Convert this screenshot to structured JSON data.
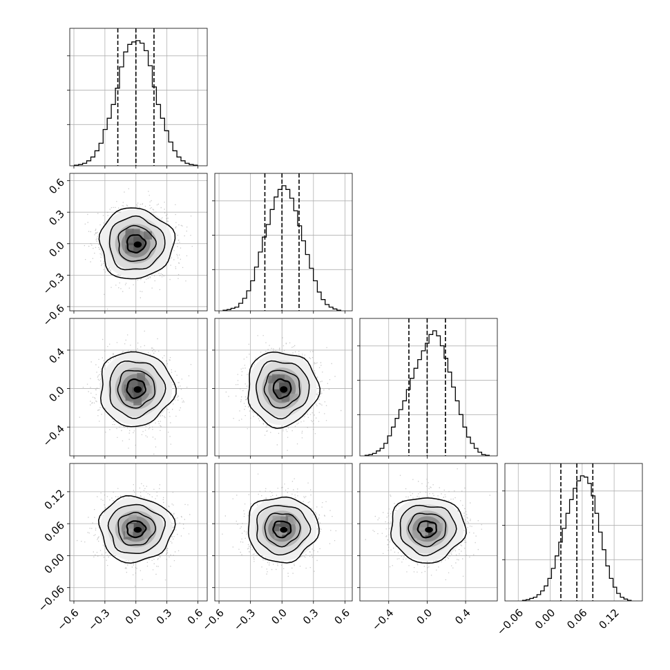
{
  "chart_data": {
    "type": "corner",
    "colors": {
      "ink": "#000000",
      "grid": "#b0b0b0",
      "scatter": "#9a9a9a",
      "background": "#ffffff"
    },
    "grid": true,
    "parameters": [
      {
        "range": [
          -0.64,
          0.69
        ],
        "ticks": [
          -0.6,
          -0.3,
          0.0,
          0.3,
          0.6
        ],
        "tick_labels": [
          "−0.6",
          "−0.3",
          "0.0",
          "0.3",
          "0.6"
        ],
        "mean": 0.0,
        "sd": 0.175
      },
      {
        "range": [
          -0.64,
          0.67
        ],
        "ticks": [
          -0.6,
          -0.3,
          0.0,
          0.3,
          0.6
        ],
        "tick_labels": [
          "−0.6",
          "−0.3",
          "0.0",
          "0.3",
          "0.6"
        ],
        "mean": 0.0,
        "sd": 0.165
      },
      {
        "range": [
          -0.7,
          0.73
        ],
        "ticks": [
          -0.4,
          0.0,
          0.4
        ],
        "tick_labels": [
          "−0.4",
          "0.0",
          "0.4"
        ],
        "mean": 0.0,
        "sd": 0.19
      },
      {
        "range": [
          -0.085,
          0.173
        ],
        "ticks": [
          -0.06,
          0.0,
          0.06,
          0.12
        ],
        "tick_labels": [
          "−0.06",
          "0.00",
          "0.06",
          "0.12"
        ],
        "mean": 0.05,
        "sd": 0.03
      }
    ],
    "histograms": [
      {
        "param": 0,
        "quantiles": [
          -0.175,
          0.0,
          0.175
        ],
        "counts": [
          0.5,
          1,
          2,
          4,
          7,
          12,
          18,
          29,
          38,
          49,
          62,
          79,
          91,
          97,
          99,
          100,
          98,
          92,
          80,
          63,
          49,
          38,
          28,
          19,
          12,
          7,
          4,
          2,
          1,
          0.5
        ]
      },
      {
        "param": 1,
        "quantiles": [
          -0.163,
          0.0,
          0.163
        ],
        "counts": [
          0.5,
          1,
          2,
          3,
          6,
          10,
          16,
          24,
          35,
          47,
          59,
          69,
          81,
          91,
          97,
          100,
          97,
          90,
          80,
          68,
          56,
          45,
          34,
          24,
          15,
          9,
          5,
          3,
          1.5,
          0.5
        ]
      },
      {
        "param": 2,
        "quantiles": [
          -0.19,
          0.0,
          0.19
        ],
        "counts": [
          0.5,
          1,
          2,
          4,
          6,
          10,
          16,
          23,
          30,
          37,
          44,
          53,
          62,
          70,
          77,
          84,
          90,
          97,
          100,
          96,
          88,
          78,
          67,
          55,
          44,
          33,
          23,
          15,
          10,
          6,
          3,
          1,
          0.5
        ]
      },
      {
        "param": 3,
        "quantiles": [
          0.02,
          0.05,
          0.08
        ],
        "counts": [
          0.5,
          1,
          2,
          3,
          5,
          8,
          12,
          18,
          26,
          36,
          47,
          58,
          70,
          81,
          90,
          96,
          100,
          99,
          94,
          84,
          70,
          55,
          41,
          28,
          18,
          11,
          6,
          3,
          1.5,
          0.5
        ]
      }
    ],
    "scatter_panels": [
      {
        "x": 0,
        "y": 1,
        "seed": 11,
        "rotation": 0.0
      },
      {
        "x": 0,
        "y": 2,
        "seed": 23,
        "rotation": 0.3
      },
      {
        "x": 1,
        "y": 2,
        "seed": 37,
        "rotation": 1.1
      },
      {
        "x": 0,
        "y": 3,
        "seed": 41,
        "rotation": -0.4
      },
      {
        "x": 1,
        "y": 3,
        "seed": 53,
        "rotation": 0.7
      },
      {
        "x": 2,
        "y": 3,
        "seed": 67,
        "rotation": 1.9
      }
    ],
    "contour_levels_sigma": [
      0.5,
      1.0,
      1.5,
      2.0
    ]
  }
}
